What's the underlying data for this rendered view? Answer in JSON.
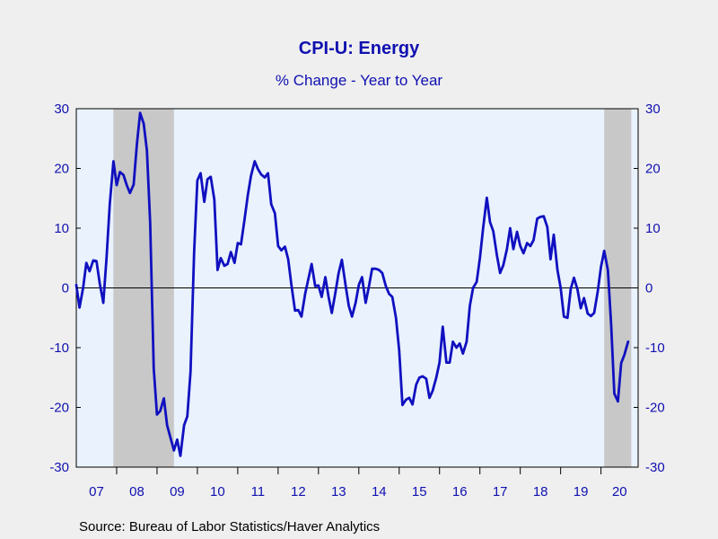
{
  "chart_data": {
    "type": "line",
    "title": "CPI-U: Energy",
    "subtitle": "% Change - Year to Year",
    "source": "Source:  Bureau of Labor Statistics/Haver Analytics",
    "ylim": [
      -30,
      30
    ],
    "yticks": [
      -30,
      -20,
      -10,
      0,
      10,
      20,
      30
    ],
    "xlim": [
      2007.0,
      2020.92
    ],
    "xtick_labels": [
      "07",
      "08",
      "09",
      "10",
      "11",
      "12",
      "13",
      "14",
      "15",
      "16",
      "17",
      "18",
      "19",
      "20"
    ],
    "grid": false,
    "recessions": [
      [
        2007.92,
        2009.42
      ],
      [
        2020.08,
        2020.75
      ]
    ],
    "colors": {
      "line": "#1010c0",
      "text": "#1010b0",
      "plot_bg": "#e9f2fd",
      "recession": "#c8c8c8"
    },
    "series": [
      {
        "values": [
          [
            2007.0,
            0.5
          ],
          [
            2007.08,
            -3.3
          ],
          [
            2007.17,
            0.0
          ],
          [
            2007.25,
            4.2
          ],
          [
            2007.33,
            2.8
          ],
          [
            2007.42,
            4.6
          ],
          [
            2007.5,
            4.5
          ],
          [
            2007.58,
            0.8
          ],
          [
            2007.67,
            -2.5
          ],
          [
            2007.75,
            5.0
          ],
          [
            2007.83,
            14.0
          ],
          [
            2007.92,
            21.2
          ],
          [
            2008.0,
            17.2
          ],
          [
            2008.08,
            19.4
          ],
          [
            2008.17,
            18.9
          ],
          [
            2008.25,
            17.2
          ],
          [
            2008.33,
            15.9
          ],
          [
            2008.42,
            17.3
          ],
          [
            2008.5,
            24.0
          ],
          [
            2008.58,
            29.3
          ],
          [
            2008.67,
            27.5
          ],
          [
            2008.75,
            23.0
          ],
          [
            2008.83,
            11.0
          ],
          [
            2008.92,
            -13.5
          ],
          [
            2009.0,
            -21.2
          ],
          [
            2009.08,
            -20.6
          ],
          [
            2009.17,
            -18.5
          ],
          [
            2009.25,
            -23.0
          ],
          [
            2009.33,
            -25.0
          ],
          [
            2009.42,
            -27.2
          ],
          [
            2009.5,
            -25.4
          ],
          [
            2009.58,
            -28.1
          ],
          [
            2009.67,
            -23.0
          ],
          [
            2009.75,
            -21.5
          ],
          [
            2009.83,
            -14.0
          ],
          [
            2009.92,
            6.0
          ],
          [
            2010.0,
            18.0
          ],
          [
            2010.08,
            19.2
          ],
          [
            2010.17,
            14.4
          ],
          [
            2010.25,
            18.2
          ],
          [
            2010.33,
            18.6
          ],
          [
            2010.42,
            14.8
          ],
          [
            2010.5,
            3.0
          ],
          [
            2010.58,
            5.0
          ],
          [
            2010.67,
            3.7
          ],
          [
            2010.75,
            4.0
          ],
          [
            2010.83,
            6.0
          ],
          [
            2010.92,
            4.2
          ],
          [
            2011.0,
            7.5
          ],
          [
            2011.08,
            7.3
          ],
          [
            2011.17,
            11.5
          ],
          [
            2011.25,
            15.5
          ],
          [
            2011.33,
            18.8
          ],
          [
            2011.42,
            21.2
          ],
          [
            2011.5,
            19.9
          ],
          [
            2011.58,
            19.0
          ],
          [
            2011.67,
            18.5
          ],
          [
            2011.75,
            19.2
          ],
          [
            2011.83,
            14.0
          ],
          [
            2011.92,
            12.5
          ],
          [
            2012.0,
            7.0
          ],
          [
            2012.08,
            6.3
          ],
          [
            2012.17,
            6.9
          ],
          [
            2012.25,
            4.8
          ],
          [
            2012.33,
            0.5
          ],
          [
            2012.42,
            -3.8
          ],
          [
            2012.5,
            -3.7
          ],
          [
            2012.58,
            -4.8
          ],
          [
            2012.67,
            -1.0
          ],
          [
            2012.75,
            1.5
          ],
          [
            2012.83,
            4.0
          ],
          [
            2012.92,
            0.3
          ],
          [
            2013.0,
            0.4
          ],
          [
            2013.08,
            -1.5
          ],
          [
            2013.17,
            1.8
          ],
          [
            2013.25,
            -1.5
          ],
          [
            2013.33,
            -4.2
          ],
          [
            2013.42,
            -0.8
          ],
          [
            2013.5,
            2.5
          ],
          [
            2013.58,
            4.7
          ],
          [
            2013.67,
            0.5
          ],
          [
            2013.75,
            -3.0
          ],
          [
            2013.83,
            -4.8
          ],
          [
            2013.92,
            -2.5
          ],
          [
            2014.0,
            0.5
          ],
          [
            2014.08,
            1.8
          ],
          [
            2014.17,
            -2.5
          ],
          [
            2014.25,
            0.2
          ],
          [
            2014.33,
            3.2
          ],
          [
            2014.42,
            3.2
          ],
          [
            2014.5,
            3.0
          ],
          [
            2014.58,
            2.5
          ],
          [
            2014.67,
            0.3
          ],
          [
            2014.75,
            -1.0
          ],
          [
            2014.83,
            -1.5
          ],
          [
            2014.92,
            -5.0
          ],
          [
            2015.0,
            -10.5
          ],
          [
            2015.08,
            -19.6
          ],
          [
            2015.17,
            -18.7
          ],
          [
            2015.25,
            -18.4
          ],
          [
            2015.33,
            -19.5
          ],
          [
            2015.42,
            -16.2
          ],
          [
            2015.5,
            -15.0
          ],
          [
            2015.58,
            -14.8
          ],
          [
            2015.67,
            -15.2
          ],
          [
            2015.75,
            -18.4
          ],
          [
            2015.83,
            -17.2
          ],
          [
            2015.92,
            -15.0
          ],
          [
            2016.0,
            -12.5
          ],
          [
            2016.08,
            -6.5
          ],
          [
            2016.17,
            -12.5
          ],
          [
            2016.25,
            -12.5
          ],
          [
            2016.33,
            -9.0
          ],
          [
            2016.42,
            -10.0
          ],
          [
            2016.5,
            -9.3
          ],
          [
            2016.58,
            -11.0
          ],
          [
            2016.67,
            -9.0
          ],
          [
            2016.75,
            -3.0
          ],
          [
            2016.83,
            0.0
          ],
          [
            2016.92,
            1.0
          ],
          [
            2017.0,
            5.0
          ],
          [
            2017.08,
            10.0
          ],
          [
            2017.17,
            15.1
          ],
          [
            2017.25,
            11.0
          ],
          [
            2017.33,
            9.5
          ],
          [
            2017.42,
            5.5
          ],
          [
            2017.5,
            2.5
          ],
          [
            2017.58,
            3.8
          ],
          [
            2017.67,
            6.5
          ],
          [
            2017.75,
            10.0
          ],
          [
            2017.83,
            6.5
          ],
          [
            2017.92,
            9.4
          ],
          [
            2018.0,
            7.0
          ],
          [
            2018.08,
            5.8
          ],
          [
            2018.17,
            7.5
          ],
          [
            2018.25,
            7.0
          ],
          [
            2018.33,
            8.0
          ],
          [
            2018.42,
            11.6
          ],
          [
            2018.5,
            11.9
          ],
          [
            2018.58,
            12.0
          ],
          [
            2018.67,
            10.2
          ],
          [
            2018.75,
            4.8
          ],
          [
            2018.83,
            8.9
          ],
          [
            2018.92,
            3.0
          ],
          [
            2019.0,
            0.0
          ],
          [
            2019.08,
            -4.8
          ],
          [
            2019.17,
            -5.0
          ],
          [
            2019.25,
            -0.2
          ],
          [
            2019.33,
            1.7
          ],
          [
            2019.42,
            -0.3
          ],
          [
            2019.5,
            -3.4
          ],
          [
            2019.58,
            -1.7
          ],
          [
            2019.67,
            -4.3
          ],
          [
            2019.75,
            -4.7
          ],
          [
            2019.83,
            -4.2
          ],
          [
            2019.92,
            -0.6
          ],
          [
            2020.0,
            3.5
          ],
          [
            2020.08,
            6.2
          ],
          [
            2020.17,
            3.0
          ],
          [
            2020.25,
            -6.0
          ],
          [
            2020.33,
            -17.7
          ],
          [
            2020.42,
            -19.0
          ],
          [
            2020.5,
            -12.6
          ],
          [
            2020.58,
            -11.2
          ],
          [
            2020.67,
            -9.0
          ]
        ]
      }
    ]
  }
}
